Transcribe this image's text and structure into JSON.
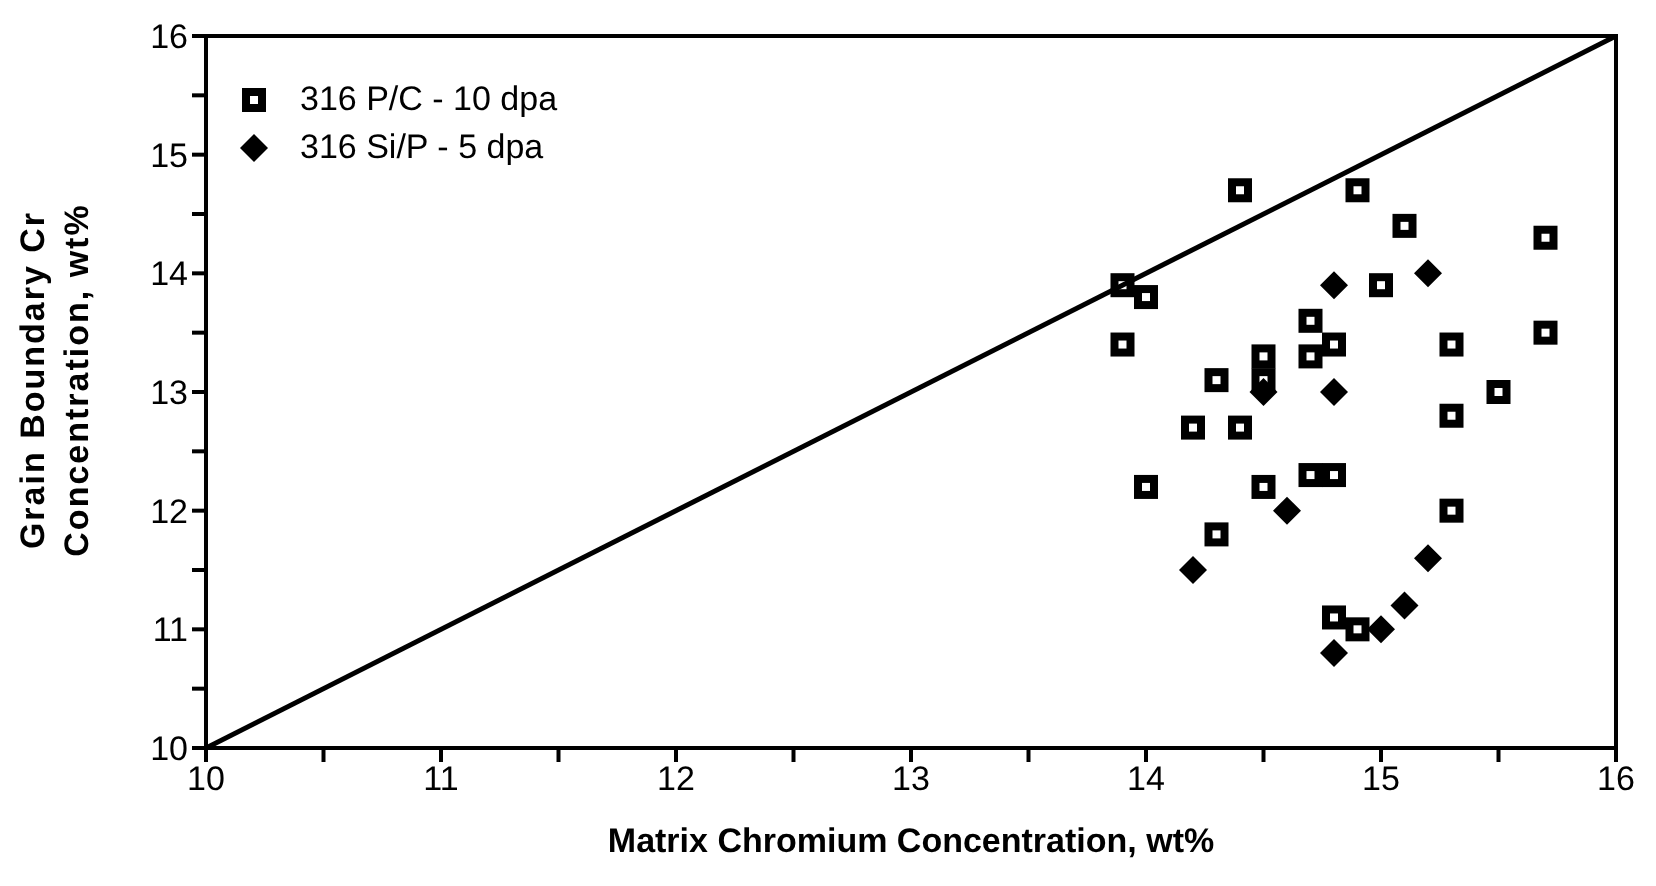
{
  "chart_data": {
    "type": "scatter",
    "xlabel": "Matrix Chromium Concentration, wt%",
    "ylabel": "Grain Boundary Cr Concentration, wt%",
    "xlim": [
      10,
      16
    ],
    "ylim": [
      10,
      16
    ],
    "xticks": [
      10,
      {
        "value": 10.5,
        "label": null
      },
      11,
      {
        "value": 11.5,
        "label": null
      },
      12,
      {
        "value": 12.5,
        "label": null
      },
      13,
      {
        "value": 13.5,
        "label": null
      },
      14,
      {
        "value": 14.5,
        "label": null
      },
      15,
      {
        "value": 15.5,
        "label": null
      },
      16
    ],
    "yticks": [
      10,
      {
        "value": 10.5,
        "label": null
      },
      11,
      {
        "value": 11.5,
        "label": null
      },
      12,
      {
        "value": 12.5,
        "label": null
      },
      13,
      {
        "value": 13.5,
        "label": null
      },
      14,
      {
        "value": 14.5,
        "label": null
      },
      15,
      {
        "value": 15.5,
        "label": null
      },
      16
    ],
    "legend": "top left",
    "grid": false,
    "series": [
      {
        "name": "316 P/C - 10 dpa",
        "type": "scatter",
        "marker": "square",
        "color": "#000000",
        "x": [
          13.9,
          13.9,
          14.0,
          14.0,
          14.2,
          14.3,
          14.3,
          14.4,
          14.4,
          14.5,
          14.5,
          14.5,
          14.7,
          14.7,
          14.7,
          14.8,
          14.8,
          14.8,
          14.9,
          14.9,
          15.0,
          15.1,
          15.3,
          15.3,
          15.3,
          15.5,
          15.7,
          15.7
        ],
        "values": [
          13.9,
          13.4,
          13.8,
          12.2,
          12.7,
          13.1,
          11.8,
          14.7,
          12.7,
          13.3,
          13.1,
          12.2,
          13.6,
          13.3,
          12.3,
          13.4,
          12.3,
          11.1,
          14.7,
          11.0,
          13.9,
          14.4,
          13.4,
          12.8,
          12.0,
          13.0,
          14.3,
          13.5
        ]
      },
      {
        "name": "316 Si/P - 5 dpa",
        "type": "scatter",
        "marker": "diamond",
        "color": "#000000",
        "x": [
          14.2,
          14.5,
          14.6,
          14.8,
          14.8,
          14.8,
          15.0,
          15.1,
          15.2,
          15.2
        ],
        "values": [
          11.5,
          13.0,
          12.0,
          13.9,
          10.8,
          13.0,
          11.0,
          11.2,
          14.0,
          11.6
        ]
      },
      {
        "type": "line",
        "marker": "none",
        "line_style": "solid",
        "color": "#000000",
        "x": [
          10,
          16
        ],
        "values": [
          10,
          16
        ]
      }
    ]
  }
}
